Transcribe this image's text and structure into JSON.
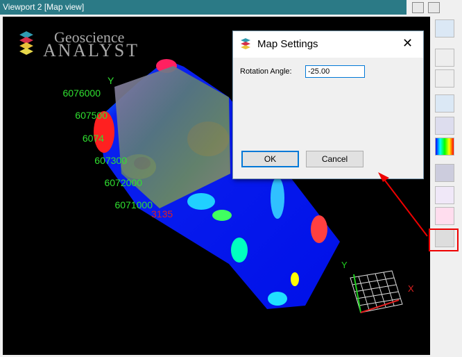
{
  "window": {
    "title": "Viewport 2 [Map view]"
  },
  "logo": {
    "line1": "Geoscience",
    "line2": "ANALYST"
  },
  "map": {
    "y_axis_label": "Y",
    "northing_labels": [
      "6076000",
      "607500",
      "6074",
      "607300",
      "6072000",
      "6071000"
    ],
    "easting_label": "3135",
    "triad": {
      "y": "Y",
      "x": "X"
    }
  },
  "dialog": {
    "title": "Map Settings",
    "field_label": "Rotation Angle:",
    "field_value": "-25.00",
    "ok": "OK",
    "cancel": "Cancel"
  }
}
